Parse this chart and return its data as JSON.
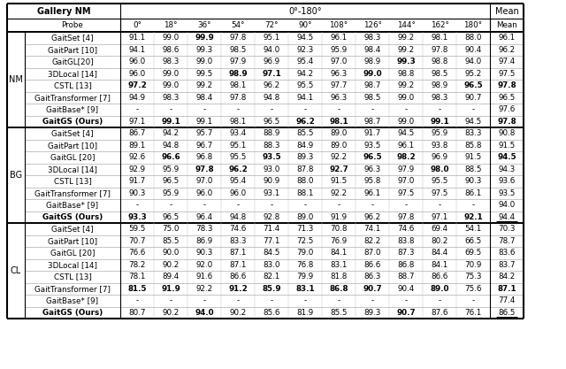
{
  "col_angles": [
    "0°",
    "18°",
    "36°",
    "54°",
    "72°",
    "90°",
    "108°",
    "126°",
    "144°",
    "162°",
    "180°"
  ],
  "sections": [
    {
      "label": "NM",
      "rows": [
        {
          "name": "GaitSet [4]",
          "vals": [
            "91.1",
            "99.0",
            "99.9",
            "97.8",
            "95.1",
            "94.5",
            "96.1",
            "98.3",
            "99.2",
            "98.1",
            "88.0"
          ],
          "mean": "96.1",
          "bold": [
            2
          ],
          "bold_mean": false,
          "underline_mean": false,
          "bold_name": false
        },
        {
          "name": "GaitPart [10]",
          "vals": [
            "94.1",
            "98.6",
            "99.3",
            "98.5",
            "94.0",
            "92.3",
            "95.9",
            "98.4",
            "99.2",
            "97.8",
            "90.4"
          ],
          "mean": "96.2",
          "bold": [],
          "bold_mean": false,
          "underline_mean": false,
          "bold_name": false
        },
        {
          "name": "GaitGL[20]",
          "vals": [
            "96.0",
            "98.3",
            "99.0",
            "97.9",
            "96.9",
            "95.4",
            "97.0",
            "98.9",
            "99.3",
            "98.8",
            "94.0"
          ],
          "mean": "97.4",
          "bold": [
            8
          ],
          "bold_mean": false,
          "underline_mean": false,
          "bold_name": false
        },
        {
          "name": "3DLocal [14]",
          "vals": [
            "96.0",
            "99.0",
            "99.5",
            "98.9",
            "97.1",
            "94.2",
            "96.3",
            "99.0",
            "98.8",
            "98.5",
            "95.2"
          ],
          "mean": "97.5",
          "bold": [
            3,
            4,
            7
          ],
          "bold_mean": false,
          "underline_mean": false,
          "bold_name": false
        },
        {
          "name": "CSTL [13]",
          "vals": [
            "97.2",
            "99.0",
            "99.2",
            "98.1",
            "96.2",
            "95.5",
            "97.7",
            "98.7",
            "99.2",
            "98.9",
            "96.5"
          ],
          "mean": "97.8",
          "bold": [
            0,
            10
          ],
          "bold_mean": true,
          "underline_mean": false,
          "bold_name": false
        },
        {
          "name": "GaitTransformer [7]",
          "vals": [
            "94.9",
            "98.3",
            "98.4",
            "97.8",
            "94.8",
            "94.1",
            "96.3",
            "98.5",
            "99.0",
            "98.3",
            "90.7"
          ],
          "mean": "96.5",
          "bold": [],
          "bold_mean": false,
          "underline_mean": false,
          "bold_name": false
        },
        {
          "name": "GaitBase* [9]",
          "vals": [
            "-",
            "-",
            "-",
            "-",
            "-",
            "-",
            "-",
            "-",
            "-",
            "-",
            "-"
          ],
          "mean": "97.6",
          "bold": [],
          "bold_mean": false,
          "underline_mean": false,
          "bold_name": false
        },
        {
          "name": "GaitGS (Ours)",
          "vals": [
            "97.1",
            "99.1",
            "99.1",
            "98.1",
            "96.5",
            "96.2",
            "98.1",
            "98.7",
            "99.0",
            "99.1",
            "94.5"
          ],
          "mean": "97.8",
          "bold": [
            1,
            5,
            6,
            9
          ],
          "bold_mean": true,
          "underline_mean": false,
          "bold_name": true
        }
      ]
    },
    {
      "label": "BG",
      "rows": [
        {
          "name": "GaitSet [4]",
          "vals": [
            "86.7",
            "94.2",
            "95.7",
            "93.4",
            "88.9",
            "85.5",
            "89.0",
            "91.7",
            "94.5",
            "95.9",
            "83.3"
          ],
          "mean": "90.8",
          "bold": [],
          "bold_mean": false,
          "underline_mean": false,
          "bold_name": false
        },
        {
          "name": "GaitPart [10]",
          "vals": [
            "89.1",
            "94.8",
            "96.7",
            "95.1",
            "88.3",
            "84.9",
            "89.0",
            "93.5",
            "96.1",
            "93.8",
            "85.8"
          ],
          "mean": "91.5",
          "bold": [],
          "bold_mean": false,
          "underline_mean": false,
          "bold_name": false
        },
        {
          "name": "GaitGL [20]",
          "vals": [
            "92.6",
            "96.6",
            "96.8",
            "95.5",
            "93.5",
            "89.3",
            "92.2",
            "96.5",
            "98.2",
            "96.9",
            "91.5"
          ],
          "mean": "94.5",
          "bold": [
            1,
            4,
            7,
            8
          ],
          "bold_mean": true,
          "underline_mean": false,
          "bold_name": false
        },
        {
          "name": "3DLocal [14]",
          "vals": [
            "92.9",
            "95.9",
            "97.8",
            "96.2",
            "93.0",
            "87.8",
            "92.7",
            "96.3",
            "97.9",
            "98.0",
            "88.5"
          ],
          "mean": "94.3",
          "bold": [
            2,
            3,
            6,
            9
          ],
          "bold_mean": false,
          "underline_mean": false,
          "bold_name": false
        },
        {
          "name": "CSTL [13]",
          "vals": [
            "91.7",
            "96.5",
            "97.0",
            "95.4",
            "90.9",
            "88.0",
            "91.5",
            "95.8",
            "97.0",
            "95.5",
            "90.3"
          ],
          "mean": "93.6",
          "bold": [],
          "bold_mean": false,
          "underline_mean": false,
          "bold_name": false
        },
        {
          "name": "GaitTransformer [7]",
          "vals": [
            "90.3",
            "95.9",
            "96.0",
            "96.0",
            "93.1",
            "88.1",
            "92.2",
            "96.1",
            "97.5",
            "97.5",
            "86.1"
          ],
          "mean": "93.5",
          "bold": [],
          "bold_mean": false,
          "underline_mean": false,
          "bold_name": false
        },
        {
          "name": "GaitBase* [9]",
          "vals": [
            "-",
            "-",
            "-",
            "-",
            "-",
            "-",
            "-",
            "-",
            "-",
            "-",
            "-"
          ],
          "mean": "94.0",
          "bold": [],
          "bold_mean": false,
          "underline_mean": false,
          "bold_name": false
        },
        {
          "name": "GaitGS (Ours)",
          "vals": [
            "93.3",
            "96.5",
            "96.4",
            "94.8",
            "92.8",
            "89.0",
            "91.9",
            "96.2",
            "97.8",
            "97.1",
            "92.1"
          ],
          "mean": "94.4",
          "bold": [
            0,
            10
          ],
          "bold_mean": false,
          "underline_mean": true,
          "bold_name": true
        }
      ]
    },
    {
      "label": "CL",
      "rows": [
        {
          "name": "GaitSet [4]",
          "vals": [
            "59.5",
            "75.0",
            "78.3",
            "74.6",
            "71.4",
            "71.3",
            "70.8",
            "74.1",
            "74.6",
            "69.4",
            "54.1"
          ],
          "mean": "70.3",
          "bold": [],
          "bold_mean": false,
          "underline_mean": false,
          "bold_name": false
        },
        {
          "name": "GaitPart [10]",
          "vals": [
            "70.7",
            "85.5",
            "86.9",
            "83.3",
            "77.1",
            "72.5",
            "76.9",
            "82.2",
            "83.8",
            "80.2",
            "66.5"
          ],
          "mean": "78.7",
          "bold": [],
          "bold_mean": false,
          "underline_mean": false,
          "bold_name": false
        },
        {
          "name": "GaitGL [20]",
          "vals": [
            "76.6",
            "90.0",
            "90.3",
            "87.1",
            "84.5",
            "79.0",
            "84.1",
            "87.0",
            "87.3",
            "84.4",
            "69.5"
          ],
          "mean": "83.6",
          "bold": [],
          "bold_mean": false,
          "underline_mean": false,
          "bold_name": false
        },
        {
          "name": "3DLocal [14]",
          "vals": [
            "78.2",
            "90.2",
            "92.0",
            "87.1",
            "83.0",
            "76.8",
            "83.1",
            "86.6",
            "86.8",
            "84.1",
            "70.9"
          ],
          "mean": "83.7",
          "bold": [],
          "bold_mean": false,
          "underline_mean": false,
          "bold_name": false
        },
        {
          "name": "CSTL [13]",
          "vals": [
            "78.1",
            "89.4",
            "91.6",
            "86.6",
            "82.1",
            "79.9",
            "81.8",
            "86.3",
            "88.7",
            "86.6",
            "75.3"
          ],
          "mean": "84.2",
          "bold": [],
          "bold_mean": false,
          "underline_mean": false,
          "bold_name": false
        },
        {
          "name": "GaitTransformer [7]",
          "vals": [
            "81.5",
            "91.9",
            "92.2",
            "91.2",
            "85.9",
            "83.1",
            "86.8",
            "90.7",
            "90.4",
            "89.0",
            "75.6"
          ],
          "mean": "87.1",
          "bold": [
            0,
            1,
            3,
            4,
            5,
            6,
            7,
            9
          ],
          "bold_mean": true,
          "underline_mean": false,
          "bold_name": false
        },
        {
          "name": "GaitBase* [9]",
          "vals": [
            "-",
            "-",
            "-",
            "-",
            "-",
            "-",
            "-",
            "-",
            "-",
            "-",
            "-"
          ],
          "mean": "77.4",
          "bold": [],
          "bold_mean": false,
          "underline_mean": false,
          "bold_name": false
        },
        {
          "name": "GaitGS (Ours)",
          "vals": [
            "80.7",
            "90.2",
            "94.0",
            "90.2",
            "85.6",
            "81.9",
            "85.5",
            "89.3",
            "90.7",
            "87.6",
            "76.1"
          ],
          "mean": "86.5",
          "bold": [
            2,
            8
          ],
          "bold_mean": false,
          "underline_mean": true,
          "bold_name": true
        }
      ]
    }
  ]
}
